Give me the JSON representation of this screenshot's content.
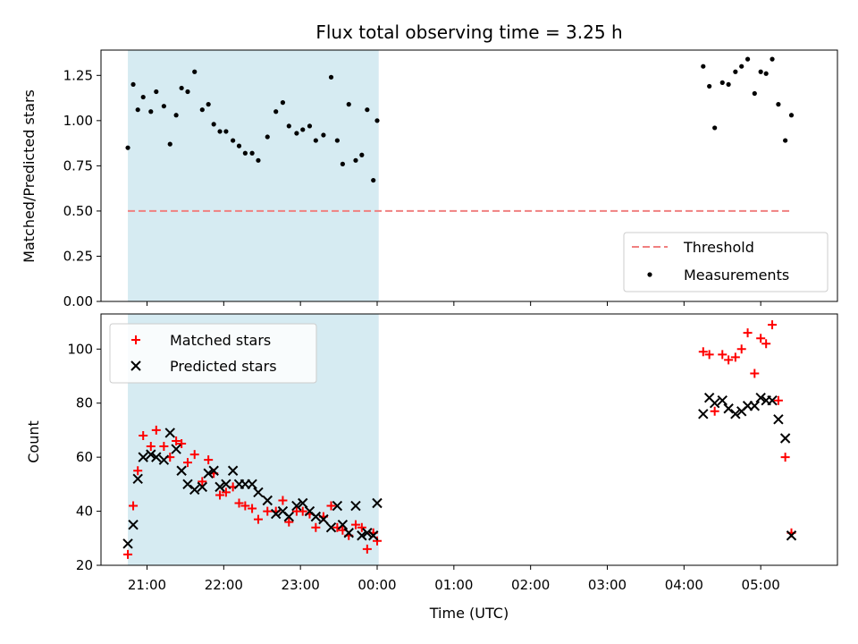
{
  "chart_data": {
    "type": "scatter",
    "title": "Flux total observing time = 3.25 h",
    "xlabel": "Time (UTC)",
    "x_ticks": [
      "21:00",
      "22:00",
      "23:00",
      "00:00",
      "01:00",
      "02:00",
      "03:00",
      "04:00",
      "05:00"
    ],
    "xlim_hours": [
      20.4,
      30.0
    ],
    "shaded_interval_hours": [
      20.75,
      24.02
    ],
    "colors": {
      "shade": "#add8e6",
      "threshold": "#f08080",
      "matched": "#ff0000",
      "predicted": "#000000",
      "measurement": "#000000"
    },
    "panels": [
      {
        "ylabel": "Matched/Predicted stars",
        "ylim": [
          0.0,
          1.39
        ],
        "y_ticks": [
          "0.00",
          "0.25",
          "0.50",
          "0.75",
          "1.00",
          "1.25"
        ],
        "legend_position": "lower-right",
        "threshold": {
          "name": "Threshold",
          "value": 0.5,
          "x_range": [
            20.75,
            29.4
          ]
        },
        "series": [
          {
            "name": "Measurements",
            "marker": "dot",
            "x": [
              20.75,
              20.82,
              20.88,
              20.95,
              21.05,
              21.12,
              21.22,
              21.3,
              21.38,
              21.45,
              21.53,
              21.62,
              21.72,
              21.8,
              21.87,
              21.95,
              22.03,
              22.12,
              22.2,
              22.28,
              22.37,
              22.45,
              22.57,
              22.68,
              22.77,
              22.85,
              22.95,
              23.03,
              23.12,
              23.2,
              23.3,
              23.4,
              23.48,
              23.55,
              23.63,
              23.72,
              23.8,
              23.87,
              23.95,
              24.0,
              28.25,
              28.33,
              28.4,
              28.5,
              28.58,
              28.67,
              28.75,
              28.83,
              28.92,
              29.0,
              29.07,
              29.15,
              29.23,
              29.32,
              29.4
            ],
            "y": [
              0.85,
              1.2,
              1.06,
              1.13,
              1.05,
              1.16,
              1.08,
              0.87,
              1.03,
              1.18,
              1.16,
              1.27,
              1.06,
              1.09,
              0.98,
              0.94,
              0.94,
              0.89,
              0.86,
              0.82,
              0.82,
              0.78,
              0.91,
              1.05,
              1.1,
              0.97,
              0.93,
              0.95,
              0.97,
              0.89,
              0.92,
              1.24,
              0.89,
              0.76,
              1.09,
              0.78,
              0.81,
              1.06,
              0.67,
              1.0,
              1.3,
              1.19,
              0.96,
              1.21,
              1.2,
              1.27,
              1.3,
              1.34,
              1.15,
              1.27,
              1.26,
              1.34,
              1.09,
              0.89,
              1.03
            ]
          }
        ]
      },
      {
        "ylabel": "Count",
        "ylim": [
          20,
          113
        ],
        "y_ticks": [
          "20",
          "40",
          "60",
          "80",
          "100"
        ],
        "legend_position": "upper-left",
        "series": [
          {
            "name": "Matched stars",
            "marker": "plus",
            "x": [
              20.75,
              20.82,
              20.88,
              20.95,
              21.05,
              21.12,
              21.22,
              21.3,
              21.38,
              21.45,
              21.53,
              21.62,
              21.72,
              21.8,
              21.87,
              21.95,
              22.03,
              22.12,
              22.2,
              22.28,
              22.37,
              22.45,
              22.57,
              22.68,
              22.77,
              22.85,
              22.95,
              23.03,
              23.12,
              23.2,
              23.3,
              23.4,
              23.48,
              23.55,
              23.63,
              23.72,
              23.8,
              23.87,
              23.95,
              24.0,
              28.25,
              28.33,
              28.4,
              28.5,
              28.58,
              28.67,
              28.75,
              28.83,
              28.92,
              29.0,
              29.07,
              29.15,
              29.23,
              29.32,
              29.4
            ],
            "y": [
              24,
              42,
              55,
              68,
              64,
              70,
              64,
              60,
              66,
              65,
              58,
              61,
              51,
              59,
              54,
              46,
              47,
              49,
              43,
              42,
              41,
              37,
              40,
              40,
              44,
              36,
              40,
              40,
              39,
              34,
              38,
              42,
              34,
              33,
              31,
              35,
              34,
              26,
              32,
              29,
              99,
              98,
              77,
              98,
              96,
              97,
              100,
              106,
              91,
              104,
              102,
              109,
              81,
              60,
              32
            ]
          },
          {
            "name": "Predicted stars",
            "marker": "x",
            "x": [
              20.75,
              20.82,
              20.88,
              20.95,
              21.05,
              21.12,
              21.22,
              21.3,
              21.38,
              21.45,
              21.53,
              21.62,
              21.72,
              21.8,
              21.87,
              21.95,
              22.03,
              22.12,
              22.2,
              22.28,
              22.37,
              22.45,
              22.57,
              22.68,
              22.77,
              22.85,
              22.95,
              23.03,
              23.12,
              23.2,
              23.3,
              23.4,
              23.48,
              23.55,
              23.63,
              23.72,
              23.8,
              23.87,
              23.95,
              24.0,
              28.25,
              28.33,
              28.4,
              28.5,
              28.58,
              28.67,
              28.75,
              28.83,
              28.92,
              29.0,
              29.07,
              29.15,
              29.23,
              29.32,
              29.4
            ],
            "y": [
              28,
              35,
              52,
              60,
              61,
              60,
              59,
              69,
              63,
              55,
              50,
              48,
              49,
              54,
              55,
              49,
              50,
              55,
              50,
              50,
              50,
              47,
              44,
              39,
              40,
              38,
              42,
              43,
              40,
              38,
              37,
              34,
              42,
              35,
              32,
              42,
              31,
              32,
              31,
              43,
              76,
              82,
              80,
              81,
              78,
              76,
              77,
              79,
              79,
              82,
              81,
              81,
              74,
              67,
              31
            ]
          }
        ]
      }
    ]
  }
}
